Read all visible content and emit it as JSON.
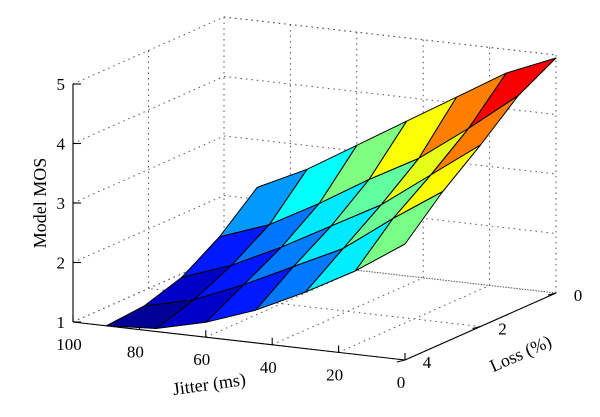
{
  "chart_data": {
    "type": "surface",
    "title": "",
    "xlabel": "Jitter (ms)",
    "ylabel": "Loss (%)",
    "zlabel": "Model MOS",
    "x_ticks": [
      "100",
      "80",
      "60",
      "40",
      "20",
      "0"
    ],
    "y_ticks": [
      "0",
      "2",
      "4"
    ],
    "z_ticks": [
      "1",
      "2",
      "3",
      "4",
      "5"
    ],
    "xlim": [
      0,
      100
    ],
    "ylim": [
      0,
      4
    ],
    "zlim": [
      1,
      5
    ],
    "grid": true,
    "colormap": "jet",
    "jitter_ms": [
      0,
      15,
      30,
      45,
      60,
      75,
      90
    ],
    "loss_pct": [
      0,
      1,
      2,
      3,
      4
    ],
    "mos": [
      [
        4.95,
        4.6,
        4.05,
        3.55,
        2.95
      ],
      [
        4.6,
        3.95,
        3.45,
        3.0,
        2.4
      ],
      [
        4.1,
        3.35,
        2.85,
        2.4,
        1.95
      ],
      [
        3.6,
        2.9,
        2.4,
        2.0,
        1.55
      ],
      [
        3.1,
        2.4,
        1.95,
        1.6,
        1.25
      ],
      [
        2.6,
        1.95,
        1.55,
        1.25,
        1.05
      ],
      [
        2.2,
        1.65,
        1.25,
        1.05,
        1.0
      ]
    ]
  }
}
